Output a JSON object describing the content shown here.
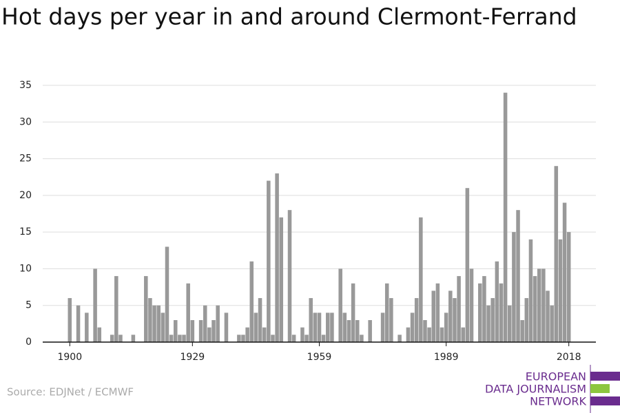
{
  "chart_data": {
    "type": "bar",
    "title": "Hot days per year in and around Clermont-Ferrand",
    "x": [
      1900,
      1901,
      1902,
      1903,
      1904,
      1905,
      1906,
      1907,
      1908,
      1909,
      1910,
      1911,
      1912,
      1913,
      1914,
      1915,
      1916,
      1917,
      1918,
      1919,
      1920,
      1921,
      1922,
      1923,
      1924,
      1925,
      1926,
      1927,
      1928,
      1929,
      1930,
      1931,
      1932,
      1933,
      1934,
      1935,
      1936,
      1937,
      1938,
      1939,
      1940,
      1941,
      1942,
      1943,
      1944,
      1945,
      1946,
      1947,
      1948,
      1949,
      1950,
      1951,
      1952,
      1953,
      1954,
      1955,
      1956,
      1957,
      1958,
      1959,
      1960,
      1961,
      1962,
      1963,
      1964,
      1965,
      1966,
      1967,
      1968,
      1969,
      1970,
      1971,
      1972,
      1973,
      1974,
      1975,
      1976,
      1977,
      1978,
      1979,
      1980,
      1981,
      1982,
      1983,
      1984,
      1985,
      1986,
      1987,
      1988,
      1989,
      1990,
      1991,
      1992,
      1993,
      1994,
      1995,
      1996,
      1997,
      1998,
      1999,
      2000,
      2001,
      2002,
      2003,
      2004,
      2005,
      2006,
      2007,
      2008,
      2009,
      2010,
      2011,
      2012,
      2013,
      2014,
      2015,
      2016,
      2017,
      2018
    ],
    "values": [
      6,
      0,
      5,
      0,
      4,
      0,
      10,
      2,
      0,
      0,
      1,
      9,
      1,
      0,
      0,
      1,
      0,
      0,
      9,
      6,
      5,
      5,
      4,
      13,
      1,
      3,
      1,
      1,
      8,
      3,
      0,
      3,
      5,
      2,
      3,
      5,
      0,
      4,
      0,
      0,
      1,
      1,
      2,
      11,
      4,
      6,
      2,
      22,
      1,
      23,
      17,
      0,
      18,
      1,
      0,
      2,
      1,
      6,
      4,
      4,
      1,
      4,
      4,
      0,
      10,
      4,
      3,
      8,
      3,
      1,
      0,
      3,
      0,
      0,
      4,
      8,
      6,
      0,
      1,
      0,
      2,
      4,
      6,
      17,
      3,
      2,
      7,
      8,
      2,
      4,
      7,
      6,
      9,
      2,
      21,
      10,
      0,
      8,
      9,
      5,
      6,
      11,
      8,
      34,
      5,
      15,
      18,
      3,
      6,
      14,
      9,
      10,
      10,
      7,
      5,
      24,
      14,
      19,
      15
    ],
    "color": "#999999",
    "xlim": [
      1893.6,
      2024.4
    ],
    "xticks": [
      1900,
      1929,
      1959,
      1989,
      2018
    ],
    "ylim": [
      0,
      35
    ],
    "yticks": [
      0,
      5,
      10,
      15,
      20,
      25,
      30,
      35
    ],
    "grid": true,
    "source": "Source: EDJNet / ECMWF",
    "logo": [
      "EUROPEAN",
      "DATA JOURNALISM",
      "NETWORK"
    ]
  }
}
